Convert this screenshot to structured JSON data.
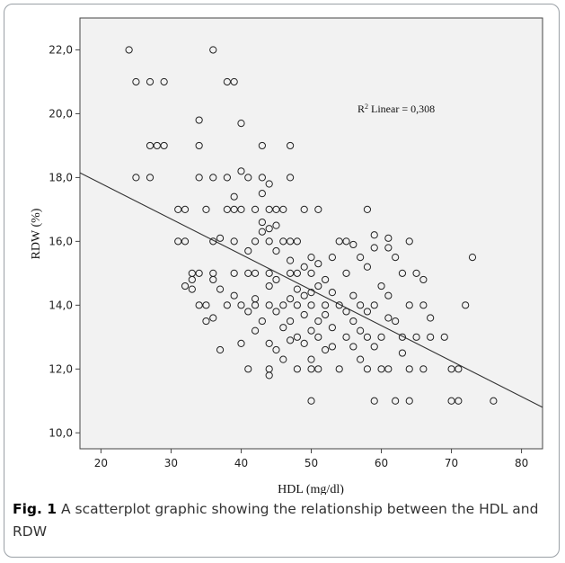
{
  "chart_data": {
    "type": "scatter",
    "title": "",
    "xlabel": "HDL (mg/dl)",
    "ylabel": "RDW (%)",
    "xlim": [
      17,
      83
    ],
    "ylim": [
      9.5,
      23.0
    ],
    "xticks": [
      "20",
      "30",
      "40",
      "50",
      "60",
      "70",
      "80"
    ],
    "yticks": [
      "10,0",
      "12,0",
      "14,0",
      "16,0",
      "18,0",
      "20,0",
      "22,0"
    ],
    "grid": false,
    "marker": "open-circle",
    "annotation": {
      "prefix": "R",
      "sup": "2",
      "text": " Linear = 0,308"
    },
    "fit_line": {
      "x": [
        17,
        83
      ],
      "y": [
        18.15,
        10.8
      ]
    },
    "series": [
      {
        "points": [
          [
            24,
            22
          ],
          [
            36,
            22
          ],
          [
            25,
            21
          ],
          [
            27,
            21
          ],
          [
            29,
            21
          ],
          [
            38,
            21
          ],
          [
            39,
            21
          ],
          [
            34,
            19.8
          ],
          [
            40,
            19.7
          ],
          [
            27,
            19
          ],
          [
            28,
            19
          ],
          [
            29,
            19
          ],
          [
            34,
            19
          ],
          [
            43,
            19
          ],
          [
            47,
            19
          ],
          [
            25,
            18
          ],
          [
            27,
            18
          ],
          [
            34,
            18
          ],
          [
            36,
            18
          ],
          [
            38,
            18
          ],
          [
            40,
            18.2
          ],
          [
            41,
            18
          ],
          [
            43,
            18
          ],
          [
            44,
            17.8
          ],
          [
            47,
            18
          ],
          [
            43,
            17.5
          ],
          [
            39,
            17.4
          ],
          [
            31,
            17
          ],
          [
            32,
            17
          ],
          [
            35,
            17
          ],
          [
            38,
            17
          ],
          [
            39,
            17
          ],
          [
            40,
            17
          ],
          [
            42,
            17
          ],
          [
            44,
            17
          ],
          [
            45,
            17
          ],
          [
            46,
            17
          ],
          [
            49,
            17
          ],
          [
            51,
            17
          ],
          [
            58,
            17
          ],
          [
            43,
            16.6
          ],
          [
            44,
            16.4
          ],
          [
            43,
            16.3
          ],
          [
            45,
            16.5
          ],
          [
            31,
            16
          ],
          [
            32,
            16
          ],
          [
            36,
            16
          ],
          [
            37,
            16.1
          ],
          [
            39,
            16
          ],
          [
            42,
            16
          ],
          [
            44,
            16
          ],
          [
            46,
            16
          ],
          [
            47,
            16
          ],
          [
            48,
            16
          ],
          [
            54,
            16
          ],
          [
            55,
            16
          ],
          [
            59,
            16.2
          ],
          [
            61,
            16.1
          ],
          [
            64,
            16
          ],
          [
            56,
            15.9
          ],
          [
            59,
            15.8
          ],
          [
            61,
            15.8
          ],
          [
            41,
            15.7
          ],
          [
            45,
            15.7
          ],
          [
            50,
            15.5
          ],
          [
            53,
            15.5
          ],
          [
            57,
            15.5
          ],
          [
            62,
            15.5
          ],
          [
            73,
            15.5
          ],
          [
            47,
            15.4
          ],
          [
            51,
            15.3
          ],
          [
            49,
            15.2
          ],
          [
            58,
            15.2
          ],
          [
            33,
            15
          ],
          [
            34,
            15
          ],
          [
            36,
            15
          ],
          [
            39,
            15
          ],
          [
            41,
            15
          ],
          [
            42,
            15
          ],
          [
            44,
            15
          ],
          [
            47,
            15
          ],
          [
            48,
            15
          ],
          [
            50,
            15
          ],
          [
            55,
            15
          ],
          [
            63,
            15
          ],
          [
            65,
            15
          ],
          [
            33,
            14.8
          ],
          [
            36,
            14.8
          ],
          [
            45,
            14.8
          ],
          [
            52,
            14.8
          ],
          [
            66,
            14.8
          ],
          [
            32,
            14.6
          ],
          [
            33,
            14.5
          ],
          [
            37,
            14.5
          ],
          [
            44,
            14.6
          ],
          [
            48,
            14.5
          ],
          [
            51,
            14.6
          ],
          [
            60,
            14.6
          ],
          [
            53,
            14.4
          ],
          [
            56,
            14.3
          ],
          [
            61,
            14.3
          ],
          [
            39,
            14.3
          ],
          [
            42,
            14.2
          ],
          [
            47,
            14.2
          ],
          [
            49,
            14.3
          ],
          [
            50,
            14.4
          ],
          [
            34,
            14
          ],
          [
            35,
            14
          ],
          [
            38,
            14
          ],
          [
            40,
            14
          ],
          [
            42,
            14
          ],
          [
            44,
            14
          ],
          [
            46,
            14
          ],
          [
            48,
            14
          ],
          [
            50,
            14
          ],
          [
            52,
            14
          ],
          [
            54,
            14
          ],
          [
            57,
            14
          ],
          [
            59,
            14
          ],
          [
            64,
            14
          ],
          [
            66,
            14
          ],
          [
            72,
            14
          ],
          [
            41,
            13.8
          ],
          [
            45,
            13.8
          ],
          [
            49,
            13.7
          ],
          [
            52,
            13.7
          ],
          [
            55,
            13.8
          ],
          [
            58,
            13.8
          ],
          [
            61,
            13.6
          ],
          [
            67,
            13.6
          ],
          [
            36,
            13.6
          ],
          [
            35,
            13.5
          ],
          [
            43,
            13.5
          ],
          [
            47,
            13.5
          ],
          [
            51,
            13.5
          ],
          [
            56,
            13.5
          ],
          [
            62,
            13.5
          ],
          [
            46,
            13.3
          ],
          [
            50,
            13.2
          ],
          [
            53,
            13.3
          ],
          [
            57,
            13.2
          ],
          [
            42,
            13.2
          ],
          [
            48,
            13
          ],
          [
            51,
            13
          ],
          [
            55,
            13
          ],
          [
            58,
            13
          ],
          [
            60,
            13
          ],
          [
            63,
            13
          ],
          [
            65,
            13
          ],
          [
            67,
            13
          ],
          [
            69,
            13
          ],
          [
            40,
            12.8
          ],
          [
            44,
            12.8
          ],
          [
            47,
            12.9
          ],
          [
            49,
            12.8
          ],
          [
            53,
            12.7
          ],
          [
            56,
            12.7
          ],
          [
            59,
            12.7
          ],
          [
            37,
            12.6
          ],
          [
            45,
            12.6
          ],
          [
            52,
            12.6
          ],
          [
            63,
            12.5
          ],
          [
            46,
            12.3
          ],
          [
            50,
            12.3
          ],
          [
            57,
            12.3
          ],
          [
            41,
            12
          ],
          [
            44,
            12
          ],
          [
            48,
            12
          ],
          [
            50,
            12
          ],
          [
            51,
            12
          ],
          [
            54,
            12
          ],
          [
            58,
            12
          ],
          [
            60,
            12
          ],
          [
            61,
            12
          ],
          [
            64,
            12
          ],
          [
            66,
            12
          ],
          [
            70,
            12
          ],
          [
            71,
            12
          ],
          [
            44,
            11.8
          ],
          [
            50,
            11
          ],
          [
            59,
            11
          ],
          [
            62,
            11
          ],
          [
            64,
            11
          ],
          [
            70,
            11
          ],
          [
            71,
            11
          ],
          [
            76,
            11
          ]
        ]
      }
    ]
  },
  "caption": {
    "label": "Fig. 1",
    "text": " A scatterplot graphic showing the relationship between the HDL and RDW"
  }
}
